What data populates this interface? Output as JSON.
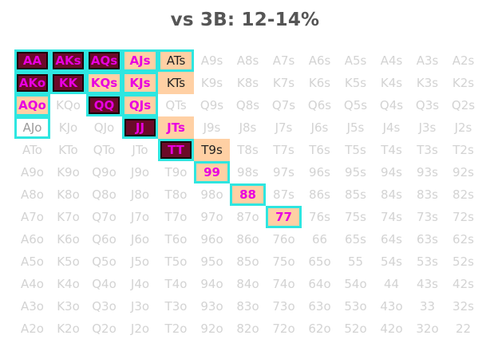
{
  "title": "vs 3B: 12-14%",
  "colors": {
    "raise_bg": "#6b0a28",
    "call_bg": "#ffd0a4",
    "highlight_text": "#e800e0",
    "border": "#2ee6e0",
    "fold_text": "#d3d3d3"
  },
  "grid": [
    [
      {
        "label": "AA",
        "type": "raise"
      },
      {
        "label": "AKs",
        "type": "raise"
      },
      {
        "label": "AQs",
        "type": "raise"
      },
      {
        "label": "AJs",
        "type": "call",
        "border": true
      },
      {
        "label": "ATs",
        "type": "call-plain",
        "border": true
      },
      {
        "label": "A9s",
        "type": "fold"
      },
      {
        "label": "A8s",
        "type": "fold"
      },
      {
        "label": "A7s",
        "type": "fold"
      },
      {
        "label": "A6s",
        "type": "fold"
      },
      {
        "label": "A5s",
        "type": "fold"
      },
      {
        "label": "A4s",
        "type": "fold"
      },
      {
        "label": "A3s",
        "type": "fold"
      },
      {
        "label": "A2s",
        "type": "fold"
      }
    ],
    [
      {
        "label": "AKo",
        "type": "raise"
      },
      {
        "label": "KK",
        "type": "raise"
      },
      {
        "label": "KQs",
        "type": "call",
        "border": true
      },
      {
        "label": "KJs",
        "type": "call",
        "border": true
      },
      {
        "label": "KTs",
        "type": "call-plain"
      },
      {
        "label": "K9s",
        "type": "fold"
      },
      {
        "label": "K8s",
        "type": "fold"
      },
      {
        "label": "K7s",
        "type": "fold"
      },
      {
        "label": "K6s",
        "type": "fold"
      },
      {
        "label": "K5s",
        "type": "fold"
      },
      {
        "label": "K4s",
        "type": "fold"
      },
      {
        "label": "K3s",
        "type": "fold"
      },
      {
        "label": "K2s",
        "type": "fold"
      }
    ],
    [
      {
        "label": "AQo",
        "type": "call",
        "border": true
      },
      {
        "label": "KQo",
        "type": "fold"
      },
      {
        "label": "QQ",
        "type": "raise"
      },
      {
        "label": "QJs",
        "type": "call",
        "border": true
      },
      {
        "label": "QTs",
        "type": "fold"
      },
      {
        "label": "Q9s",
        "type": "fold"
      },
      {
        "label": "Q8s",
        "type": "fold"
      },
      {
        "label": "Q7s",
        "type": "fold"
      },
      {
        "label": "Q6s",
        "type": "fold"
      },
      {
        "label": "Q5s",
        "type": "fold"
      },
      {
        "label": "Q4s",
        "type": "fold"
      },
      {
        "label": "Q3s",
        "type": "fold"
      },
      {
        "label": "Q2s",
        "type": "fold"
      }
    ],
    [
      {
        "label": "AJo",
        "type": "fold-dark",
        "border": true
      },
      {
        "label": "KJo",
        "type": "fold"
      },
      {
        "label": "QJo",
        "type": "fold"
      },
      {
        "label": "JJ",
        "type": "raise"
      },
      {
        "label": "JTs",
        "type": "call"
      },
      {
        "label": "J9s",
        "type": "fold"
      },
      {
        "label": "J8s",
        "type": "fold"
      },
      {
        "label": "J7s",
        "type": "fold"
      },
      {
        "label": "J6s",
        "type": "fold"
      },
      {
        "label": "J5s",
        "type": "fold"
      },
      {
        "label": "J4s",
        "type": "fold"
      },
      {
        "label": "J3s",
        "type": "fold"
      },
      {
        "label": "J2s",
        "type": "fold"
      }
    ],
    [
      {
        "label": "ATo",
        "type": "fold"
      },
      {
        "label": "KTo",
        "type": "fold"
      },
      {
        "label": "QTo",
        "type": "fold"
      },
      {
        "label": "JTo",
        "type": "fold"
      },
      {
        "label": "TT",
        "type": "raise"
      },
      {
        "label": "T9s",
        "type": "call-plain"
      },
      {
        "label": "T8s",
        "type": "fold"
      },
      {
        "label": "T7s",
        "type": "fold"
      },
      {
        "label": "T6s",
        "type": "fold"
      },
      {
        "label": "T5s",
        "type": "fold"
      },
      {
        "label": "T4s",
        "type": "fold"
      },
      {
        "label": "T3s",
        "type": "fold"
      },
      {
        "label": "T2s",
        "type": "fold"
      }
    ],
    [
      {
        "label": "A9o",
        "type": "fold"
      },
      {
        "label": "K9o",
        "type": "fold"
      },
      {
        "label": "Q9o",
        "type": "fold"
      },
      {
        "label": "J9o",
        "type": "fold"
      },
      {
        "label": "T9o",
        "type": "fold"
      },
      {
        "label": "99",
        "type": "call",
        "border": true
      },
      {
        "label": "98s",
        "type": "fold"
      },
      {
        "label": "97s",
        "type": "fold"
      },
      {
        "label": "96s",
        "type": "fold"
      },
      {
        "label": "95s",
        "type": "fold"
      },
      {
        "label": "94s",
        "type": "fold"
      },
      {
        "label": "93s",
        "type": "fold"
      },
      {
        "label": "92s",
        "type": "fold"
      }
    ],
    [
      {
        "label": "A8o",
        "type": "fold"
      },
      {
        "label": "K8o",
        "type": "fold"
      },
      {
        "label": "Q8o",
        "type": "fold"
      },
      {
        "label": "J8o",
        "type": "fold"
      },
      {
        "label": "T8o",
        "type": "fold"
      },
      {
        "label": "98o",
        "type": "fold"
      },
      {
        "label": "88",
        "type": "call",
        "border": true
      },
      {
        "label": "87s",
        "type": "fold"
      },
      {
        "label": "86s",
        "type": "fold"
      },
      {
        "label": "85s",
        "type": "fold"
      },
      {
        "label": "84s",
        "type": "fold"
      },
      {
        "label": "83s",
        "type": "fold"
      },
      {
        "label": "82s",
        "type": "fold"
      }
    ],
    [
      {
        "label": "A7o",
        "type": "fold"
      },
      {
        "label": "K7o",
        "type": "fold"
      },
      {
        "label": "Q7o",
        "type": "fold"
      },
      {
        "label": "J7o",
        "type": "fold"
      },
      {
        "label": "T7o",
        "type": "fold"
      },
      {
        "label": "97o",
        "type": "fold"
      },
      {
        "label": "87o",
        "type": "fold"
      },
      {
        "label": "77",
        "type": "call",
        "border": true
      },
      {
        "label": "76s",
        "type": "fold"
      },
      {
        "label": "75s",
        "type": "fold"
      },
      {
        "label": "74s",
        "type": "fold"
      },
      {
        "label": "73s",
        "type": "fold"
      },
      {
        "label": "72s",
        "type": "fold"
      }
    ],
    [
      {
        "label": "A6o",
        "type": "fold"
      },
      {
        "label": "K6o",
        "type": "fold"
      },
      {
        "label": "Q6o",
        "type": "fold"
      },
      {
        "label": "J6o",
        "type": "fold"
      },
      {
        "label": "T6o",
        "type": "fold"
      },
      {
        "label": "96o",
        "type": "fold"
      },
      {
        "label": "86o",
        "type": "fold"
      },
      {
        "label": "76o",
        "type": "fold"
      },
      {
        "label": "66",
        "type": "fold"
      },
      {
        "label": "65s",
        "type": "fold"
      },
      {
        "label": "64s",
        "type": "fold"
      },
      {
        "label": "63s",
        "type": "fold"
      },
      {
        "label": "62s",
        "type": "fold"
      }
    ],
    [
      {
        "label": "A5o",
        "type": "fold"
      },
      {
        "label": "K5o",
        "type": "fold"
      },
      {
        "label": "Q5o",
        "type": "fold"
      },
      {
        "label": "J5o",
        "type": "fold"
      },
      {
        "label": "T5o",
        "type": "fold"
      },
      {
        "label": "95o",
        "type": "fold"
      },
      {
        "label": "85o",
        "type": "fold"
      },
      {
        "label": "75o",
        "type": "fold"
      },
      {
        "label": "65o",
        "type": "fold"
      },
      {
        "label": "55",
        "type": "fold"
      },
      {
        "label": "54s",
        "type": "fold"
      },
      {
        "label": "53s",
        "type": "fold"
      },
      {
        "label": "52s",
        "type": "fold"
      }
    ],
    [
      {
        "label": "A4o",
        "type": "fold"
      },
      {
        "label": "K4o",
        "type": "fold"
      },
      {
        "label": "Q4o",
        "type": "fold"
      },
      {
        "label": "J4o",
        "type": "fold"
      },
      {
        "label": "T4o",
        "type": "fold"
      },
      {
        "label": "94o",
        "type": "fold"
      },
      {
        "label": "84o",
        "type": "fold"
      },
      {
        "label": "74o",
        "type": "fold"
      },
      {
        "label": "64o",
        "type": "fold"
      },
      {
        "label": "54o",
        "type": "fold"
      },
      {
        "label": "44",
        "type": "fold"
      },
      {
        "label": "43s",
        "type": "fold"
      },
      {
        "label": "42s",
        "type": "fold"
      }
    ],
    [
      {
        "label": "A3o",
        "type": "fold"
      },
      {
        "label": "K3o",
        "type": "fold"
      },
      {
        "label": "Q3o",
        "type": "fold"
      },
      {
        "label": "J3o",
        "type": "fold"
      },
      {
        "label": "T3o",
        "type": "fold"
      },
      {
        "label": "93o",
        "type": "fold"
      },
      {
        "label": "83o",
        "type": "fold"
      },
      {
        "label": "73o",
        "type": "fold"
      },
      {
        "label": "63o",
        "type": "fold"
      },
      {
        "label": "53o",
        "type": "fold"
      },
      {
        "label": "43o",
        "type": "fold"
      },
      {
        "label": "33",
        "type": "fold"
      },
      {
        "label": "32s",
        "type": "fold"
      }
    ],
    [
      {
        "label": "A2o",
        "type": "fold"
      },
      {
        "label": "K2o",
        "type": "fold"
      },
      {
        "label": "Q2o",
        "type": "fold"
      },
      {
        "label": "J2o",
        "type": "fold"
      },
      {
        "label": "T2o",
        "type": "fold"
      },
      {
        "label": "92o",
        "type": "fold"
      },
      {
        "label": "82o",
        "type": "fold"
      },
      {
        "label": "72o",
        "type": "fold"
      },
      {
        "label": "62o",
        "type": "fold"
      },
      {
        "label": "52o",
        "type": "fold"
      },
      {
        "label": "42o",
        "type": "fold"
      },
      {
        "label": "32o",
        "type": "fold"
      },
      {
        "label": "22",
        "type": "fold"
      }
    ]
  ]
}
